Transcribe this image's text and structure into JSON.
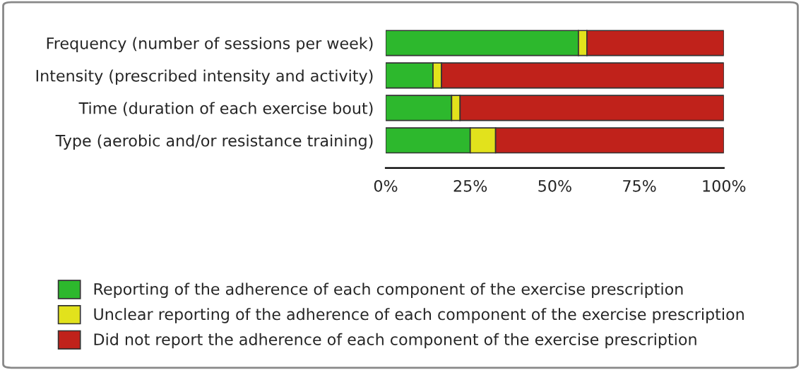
{
  "chart_data": {
    "type": "bar",
    "orientation": "horizontal",
    "stacked": true,
    "categories": [
      "Frequency (number of sessions per week)",
      "Intensity (prescribed intensity and activity)",
      "Time (duration of each exercise bout)",
      "Type (aerobic and/or resistance training)"
    ],
    "series": [
      {
        "name": "Reporting of the adherence of each component of the exercise prescription",
        "color": "#2db82d",
        "values": [
          57,
          14,
          19.5,
          25
        ]
      },
      {
        "name": "Unclear reporting of the adherence of each component of the exercise prescription",
        "color": "#e2e21c",
        "values": [
          2.5,
          2.5,
          2.5,
          7.5
        ]
      },
      {
        "name": "Did not report the adherence of each component of the exercise prescription",
        "color": "#c0221b",
        "values": [
          40.5,
          83.5,
          78,
          67.5
        ]
      }
    ],
    "xlim": [
      0,
      100
    ],
    "xticks": [
      {
        "value": 0,
        "label": "0%"
      },
      {
        "value": 25,
        "label": "25%"
      },
      {
        "value": 50,
        "label": "50%"
      },
      {
        "value": 75,
        "label": "75%"
      },
      {
        "value": 100,
        "label": "100%"
      }
    ],
    "grid": false,
    "legend": "bottom"
  }
}
